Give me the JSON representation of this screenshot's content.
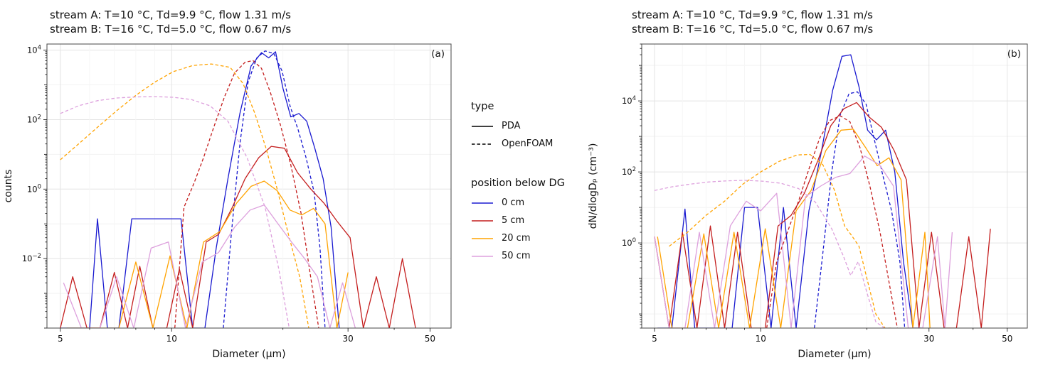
{
  "figure": {
    "title_line1": "stream A: T=10 °C, Td=9.9 °C, flow 1.31 m/s",
    "title_line2": "stream B: T=16 °C, Td=5.0 °C, flow 0.67 m/s"
  },
  "legend": {
    "type_title": "type",
    "types": [
      {
        "label": "PDA",
        "dash": "solid",
        "color": "#000000"
      },
      {
        "label": "OpenFOAM",
        "dash": "dashed",
        "color": "#000000"
      }
    ],
    "position_title": "position below DG",
    "positions": [
      {
        "label": "0 cm",
        "dash": "solid",
        "color": "#1A1AD0"
      },
      {
        "label": "5 cm",
        "dash": "solid",
        "color": "#C41E1E"
      },
      {
        "label": "20 cm",
        "dash": "solid",
        "color": "#FFA300"
      },
      {
        "label": "50 cm",
        "dash": "solid",
        "color": "#DDA0DD"
      }
    ]
  },
  "chart_data": [
    {
      "type": "line",
      "panel_label": "(a)",
      "xscale": "log",
      "yscale": "log",
      "xlabel": "Diameter (μm)",
      "ylabel": "counts",
      "xlim": [
        4.6,
        57
      ],
      "ylim": [
        0.0001,
        15000
      ],
      "x_breaks": [
        5,
        10,
        30,
        50
      ],
      "y_breaks": [
        -2,
        0,
        2,
        4
      ],
      "series": [
        {
          "name": "PDA 0 cm",
          "type": "PDA",
          "position": "0 cm",
          "color": "#1A1AD0",
          "dash": "solid",
          "x": [
            5.0,
            5.5,
            6.0,
            6.3,
            6.7,
            7.2,
            7.8,
            8.4,
            9.1,
            9.8,
            10.6,
            11.4,
            12.3,
            13.2,
            14.2,
            15.3,
            16.4,
            17.5,
            18.3,
            19.1,
            20.0,
            21.0,
            22.1,
            23.2,
            24.4,
            25.7,
            27.0,
            28.4
          ],
          "y": [
            0.0001,
            0.0001,
            0.0001,
            0.14,
            0.0001,
            0.0001,
            0.14,
            0.14,
            0.14,
            0.14,
            0.14,
            0.0001,
            0.0001,
            0.02,
            2,
            150,
            3500,
            8500,
            6000,
            9000,
            800,
            120,
            150,
            90,
            15,
            2,
            0.08,
            0.0001
          ]
        },
        {
          "name": "OpenFOAM 0 cm",
          "type": "OpenFOAM",
          "position": "0 cm",
          "color": "#1A1AD0",
          "dash": "dashed",
          "x": [
            13.8,
            14.5,
            15.3,
            16.1,
            17.0,
            17.9,
            18.9,
            19.9,
            20.9,
            22.0,
            23.1,
            24.3,
            25.2,
            26.0
          ],
          "y": [
            0.0001,
            0.05,
            20,
            1200,
            6000,
            9500,
            8000,
            2500,
            250,
            50,
            8,
            0.8,
            0.02,
            0.0001
          ]
        },
        {
          "name": "PDA 5 cm",
          "type": "PDA",
          "position": "5 cm",
          "color": "#C41E1E",
          "dash": "solid",
          "x": [
            5.0,
            5.4,
            5.9,
            6.4,
            7.0,
            7.6,
            8.2,
            8.9,
            9.7,
            10.5,
            11.4,
            12.4,
            13.4,
            14.6,
            15.8,
            17.2,
            18.6,
            20.2,
            21.9,
            23.8,
            25.8,
            28.0,
            30.4,
            33.0,
            35.8,
            38.8,
            42.1,
            45.7
          ],
          "y": [
            0.0001,
            0.003,
            0.0001,
            0.0001,
            0.004,
            0.0001,
            0.006,
            0.0001,
            0.0001,
            0.005,
            0.0001,
            0.03,
            0.05,
            0.3,
            2,
            8,
            17,
            15,
            3,
            1,
            0.4,
            0.12,
            0.04,
            0.0001,
            0.003,
            0.0001,
            0.01,
            0.0001
          ]
        },
        {
          "name": "OpenFOAM 5 cm",
          "type": "OpenFOAM",
          "position": "5 cm",
          "color": "#C41E1E",
          "dash": "dashed",
          "x": [
            10.2,
            10.8,
            11.5,
            12.2,
            13.0,
            13.9,
            14.8,
            15.8,
            16.6,
            17.5,
            18.5,
            19.7,
            21.0,
            22.4,
            23.9,
            25.0
          ],
          "y": [
            0.0001,
            0.3,
            1.5,
            8,
            60,
            450,
            2200,
            4500,
            5000,
            3000,
            600,
            70,
            5,
            0.2,
            0.002,
            0.0001
          ]
        },
        {
          "name": "PDA 20 cm",
          "type": "PDA",
          "position": "20 cm",
          "color": "#FFA300",
          "dash": "solid",
          "x": [
            5.2,
            5.8,
            6.5,
            7.2,
            8.0,
            8.9,
            9.9,
            11.0,
            12.2,
            13.5,
            15.0,
            16.4,
            17.8,
            19.3,
            20.9,
            22.5,
            24.2,
            26.0,
            28.0,
            30.0
          ],
          "y": [
            0.0001,
            0.0001,
            0.0001,
            0.0001,
            0.008,
            0.0001,
            0.012,
            0.0001,
            0.03,
            0.06,
            0.4,
            1.2,
            1.7,
            0.9,
            0.25,
            0.18,
            0.28,
            0.1,
            0.0001,
            0.004
          ]
        },
        {
          "name": "OpenFOAM 20 cm",
          "type": "OpenFOAM",
          "position": "20 cm",
          "color": "#FFA300",
          "dash": "dashed",
          "x": [
            5.0,
            5.6,
            6.3,
            7.1,
            8.0,
            9.0,
            10.1,
            11.4,
            12.8,
            14.4,
            15.6,
            16.8,
            18.0,
            19.3,
            20.7,
            22.2,
            23.5
          ],
          "y": [
            7,
            20,
            60,
            180,
            500,
            1200,
            2400,
            3600,
            4000,
            3200,
            1100,
            150,
            15,
            1,
            0.05,
            0.003,
            0.0001
          ]
        },
        {
          "name": "PDA 50 cm",
          "type": "PDA",
          "position": "50 cm",
          "color": "#DDA0DD",
          "dash": "solid",
          "x": [
            5.1,
            5.7,
            6.4,
            7.1,
            7.9,
            8.8,
            9.8,
            10.9,
            12.1,
            13.4,
            14.8,
            16.3,
            17.8,
            19.4,
            21.1,
            22.9,
            24.8,
            26.8,
            29.0,
            31.4
          ],
          "y": [
            0.002,
            0.0001,
            0.0001,
            0.003,
            0.0001,
            0.02,
            0.03,
            0.0001,
            0.008,
            0.015,
            0.08,
            0.25,
            0.35,
            0.1,
            0.03,
            0.01,
            0.003,
            0.0001,
            0.002,
            0.0001
          ]
        },
        {
          "name": "OpenFOAM 50 cm",
          "type": "OpenFOAM",
          "position": "50 cm",
          "color": "#DDA0DD",
          "dash": "dashed",
          "x": [
            5.0,
            5.6,
            6.3,
            7.1,
            8.0,
            9.0,
            10.1,
            11.3,
            12.7,
            14.2,
            16.0,
            17.9,
            19.5,
            20.8
          ],
          "y": [
            150,
            250,
            350,
            420,
            450,
            460,
            440,
            380,
            250,
            90,
            8,
            0.3,
            0.005,
            0.0001
          ]
        }
      ]
    },
    {
      "type": "line",
      "panel_label": "(b)",
      "xscale": "log",
      "yscale": "log",
      "xlabel": "Diameter (μm)",
      "ylabel": "dN/dlogDₚ (cm⁻³)",
      "xlim": [
        4.6,
        57
      ],
      "ylim": [
        0.004,
        400000
      ],
      "x_breaks": [
        5,
        10,
        30,
        50
      ],
      "y_breaks": [
        0,
        2,
        4
      ],
      "series": [
        {
          "name": "PDA 0 cm",
          "type": "PDA",
          "position": "0 cm",
          "color": "#1A1AD0",
          "dash": "solid",
          "x": [
            5.1,
            5.6,
            6.1,
            6.5,
            7.0,
            7.6,
            8.3,
            9.0,
            9.8,
            10.7,
            11.6,
            12.6,
            13.7,
            14.8,
            16.0,
            17.0,
            18.0,
            19.0,
            20.1,
            21.3,
            22.6,
            24.0,
            25.4,
            27.0,
            28.6
          ],
          "y": [
            0.004,
            0.004,
            9,
            0.004,
            0.004,
            0.004,
            0.004,
            10,
            10,
            0.004,
            10,
            0.004,
            8,
            300,
            20000,
            180000,
            200000,
            25000,
            1500,
            800,
            1500,
            100,
            0.3,
            0.004,
            0.004
          ]
        },
        {
          "name": "OpenFOAM 0 cm",
          "type": "OpenFOAM",
          "position": "0 cm",
          "color": "#1A1AD0",
          "dash": "dashed",
          "x": [
            14.2,
            15.0,
            15.9,
            16.8,
            17.8,
            18.8,
            19.9,
            21.0,
            22.2,
            23.5,
            24.8,
            25.6
          ],
          "y": [
            0.004,
            0.5,
            100,
            4000,
            16000,
            18000,
            8000,
            800,
            80,
            8,
            0.3,
            0.004
          ]
        },
        {
          "name": "PDA 5 cm",
          "type": "PDA",
          "position": "5 cm",
          "color": "#C41E1E",
          "dash": "solid",
          "x": [
            5.0,
            5.5,
            6.0,
            6.6,
            7.2,
            7.9,
            8.6,
            9.4,
            10.3,
            11.2,
            12.2,
            13.3,
            14.5,
            15.8,
            17.2,
            18.7,
            20.3,
            22.0,
            23.9,
            25.9,
            28.1,
            30.5,
            33.1,
            35.9,
            38.9,
            42.2,
            44.8
          ],
          "y": [
            1.5,
            0.004,
            2,
            0.004,
            3,
            0.004,
            2,
            0.004,
            0.004,
            3,
            6,
            25,
            200,
            2000,
            6000,
            9000,
            3500,
            1800,
            400,
            60,
            0.004,
            2,
            0.004,
            0.004,
            1.5,
            0.004,
            2.5
          ]
        },
        {
          "name": "OpenFOAM 5 cm",
          "type": "OpenFOAM",
          "position": "5 cm",
          "color": "#C41E1E",
          "dash": "dashed",
          "x": [
            10.4,
            11.1,
            11.9,
            12.8,
            13.7,
            14.7,
            15.7,
            16.8,
            17.9,
            19.1,
            20.4,
            21.8,
            23.3,
            24.4
          ],
          "y": [
            0.004,
            0.3,
            2,
            15,
            120,
            900,
            2800,
            3800,
            2600,
            500,
            40,
            2,
            0.05,
            0.004
          ]
        },
        {
          "name": "PDA 20 cm",
          "type": "PDA",
          "position": "20 cm",
          "color": "#FFA300",
          "dash": "solid",
          "x": [
            5.1,
            5.6,
            6.2,
            6.9,
            7.6,
            8.4,
            9.3,
            10.3,
            11.4,
            12.6,
            13.9,
            15.3,
            16.9,
            18.3,
            19.8,
            21.4,
            23.1,
            25.0,
            27.0,
            29.2,
            30.2
          ],
          "y": [
            1.5,
            0.004,
            0.004,
            1.8,
            0.004,
            2,
            0.004,
            2.5,
            0.004,
            8,
            30,
            400,
            1500,
            1600,
            500,
            150,
            250,
            60,
            0.004,
            2,
            0.004
          ]
        },
        {
          "name": "OpenFOAM 20 cm",
          "type": "OpenFOAM",
          "position": "20 cm",
          "color": "#FFA300",
          "dash": "dashed",
          "x": [
            5.5,
            6.2,
            7.0,
            7.9,
            8.9,
            10.0,
            11.3,
            12.7,
            13.8,
            15.0,
            16.2,
            17.3,
            18.2,
            19.0,
            20.0,
            21.2,
            22.5,
            23.4
          ],
          "y": [
            0.8,
            2,
            6,
            15,
            45,
            100,
            200,
            300,
            310,
            160,
            30,
            3,
            1.5,
            0.8,
            0.1,
            0.01,
            0.004,
            0.004
          ]
        },
        {
          "name": "PDA 50 cm",
          "type": "PDA",
          "position": "50 cm",
          "color": "#DDA0DD",
          "dash": "solid",
          "x": [
            5.0,
            5.5,
            6.1,
            6.7,
            7.4,
            8.2,
            9.1,
            10.0,
            11.1,
            12.2,
            13.4,
            14.8,
            16.3,
            17.9,
            19.7,
            21.7,
            23.8,
            26.2,
            28.8,
            31.7,
            33.3,
            34.9
          ],
          "y": [
            1.5,
            0.004,
            0.004,
            2,
            0.004,
            3,
            15,
            8,
            25,
            0.004,
            20,
            40,
            70,
            90,
            280,
            160,
            40,
            0.004,
            0.004,
            1.5,
            0.004,
            2
          ]
        },
        {
          "name": "OpenFOAM 50 cm",
          "type": "OpenFOAM",
          "position": "50 cm",
          "color": "#DDA0DD",
          "dash": "dashed",
          "x": [
            5.0,
            5.6,
            6.3,
            7.1,
            8.0,
            9.0,
            10.1,
            11.4,
            12.8,
            14.3,
            15.9,
            17.2,
            18.0,
            18.9,
            20.0,
            21.2,
            22.4
          ],
          "y": [
            30,
            38,
            45,
            52,
            56,
            58,
            55,
            48,
            34,
            14,
            2.5,
            0.4,
            0.12,
            0.3,
            0.04,
            0.006,
            0.004
          ]
        }
      ]
    }
  ]
}
